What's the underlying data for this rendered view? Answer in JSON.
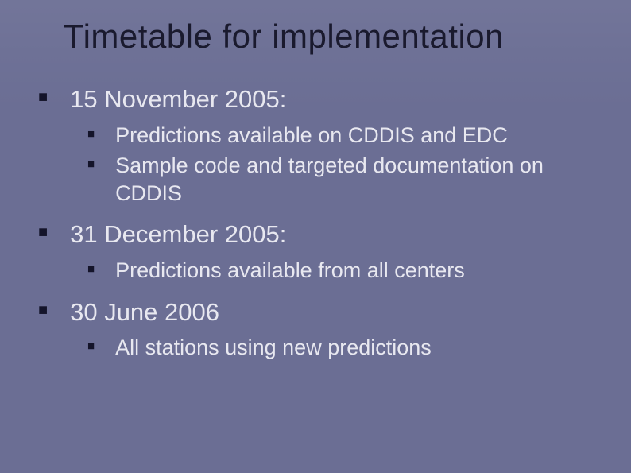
{
  "slide": {
    "title": "Timetable for implementation",
    "background_color": "#6b6e94",
    "title_color": "#1a1a2e",
    "text_color": "#e8e8f0",
    "bullet_color": "#14142a",
    "title_fontsize": 42,
    "l1_fontsize": 31,
    "l2_fontsize": 27,
    "items": [
      {
        "label": "15 November 2005:",
        "children": [
          {
            "label": "Predictions available on CDDIS and EDC"
          },
          {
            "label": "Sample code and targeted documentation on CDDIS"
          }
        ]
      },
      {
        "label": "31 December 2005:",
        "children": [
          {
            "label": "Predictions available from all centers"
          }
        ]
      },
      {
        "label": "30 June 2006",
        "children": [
          {
            "label": "All stations using new predictions"
          }
        ]
      }
    ]
  }
}
